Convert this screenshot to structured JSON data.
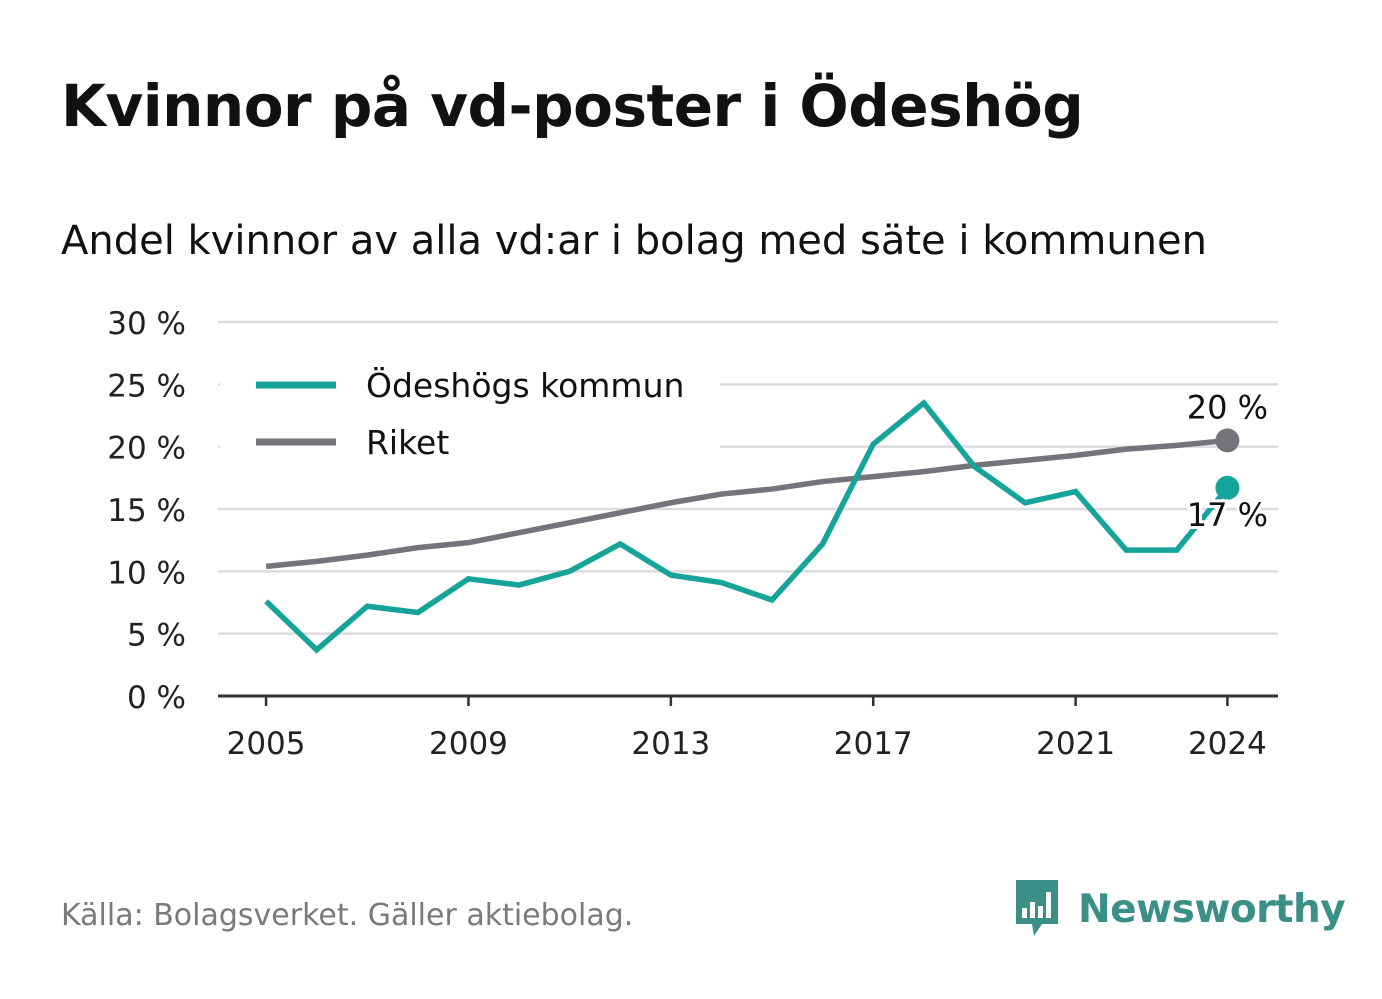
{
  "title": "Kvinnor på vd-poster i Ödeshög",
  "subtitle": "Andel kvinnor av alla vd:ar i bolag med säte i kommunen",
  "source": "Källa: Bolagsverket. Gäller aktiebolag.",
  "brand": {
    "name": "Newsworthy",
    "icon": "newsworthy-logo-icon",
    "color": "#3a8f86"
  },
  "chart_data": {
    "type": "line",
    "x": [
      2005,
      2006,
      2007,
      2008,
      2009,
      2010,
      2011,
      2012,
      2013,
      2014,
      2015,
      2016,
      2017,
      2018,
      2019,
      2020,
      2021,
      2022,
      2023,
      2024
    ],
    "series": [
      {
        "name": "Ödeshögs kommun",
        "color": "#16a39a",
        "values": [
          7.6,
          3.7,
          7.2,
          6.7,
          9.4,
          8.9,
          10.0,
          12.2,
          9.7,
          9.1,
          7.7,
          12.2,
          20.2,
          23.5,
          18.4,
          15.5,
          16.4,
          11.7,
          11.7,
          16.7
        ],
        "end_label": "17 %"
      },
      {
        "name": "Riket",
        "color": "#75747b",
        "values": [
          10.4,
          10.8,
          11.3,
          11.9,
          12.3,
          13.1,
          13.9,
          14.7,
          15.5,
          16.2,
          16.6,
          17.2,
          17.6,
          18.0,
          18.5,
          18.9,
          19.3,
          19.8,
          20.1,
          20.5
        ],
        "end_label": "20 %"
      }
    ],
    "xticks": [
      {
        "value": 2005,
        "label": "2005"
      },
      {
        "value": 2009,
        "label": "2009"
      },
      {
        "value": 2013,
        "label": "2013"
      },
      {
        "value": 2017,
        "label": "2017"
      },
      {
        "value": 2021,
        "label": "2021"
      },
      {
        "value": 2024,
        "label": "2024"
      }
    ],
    "yticks": [
      {
        "value": 0,
        "label": "0 %"
      },
      {
        "value": 5,
        "label": "5 %"
      },
      {
        "value": 10,
        "label": "10 %"
      },
      {
        "value": 15,
        "label": "15 %"
      },
      {
        "value": 20,
        "label": "20 %"
      },
      {
        "value": 25,
        "label": "25 %"
      },
      {
        "value": 30,
        "label": "30 %"
      }
    ],
    "ylim": [
      0,
      30
    ],
    "xlim": [
      2004.05,
      2025
    ],
    "grid": true,
    "legend": "top-left"
  }
}
